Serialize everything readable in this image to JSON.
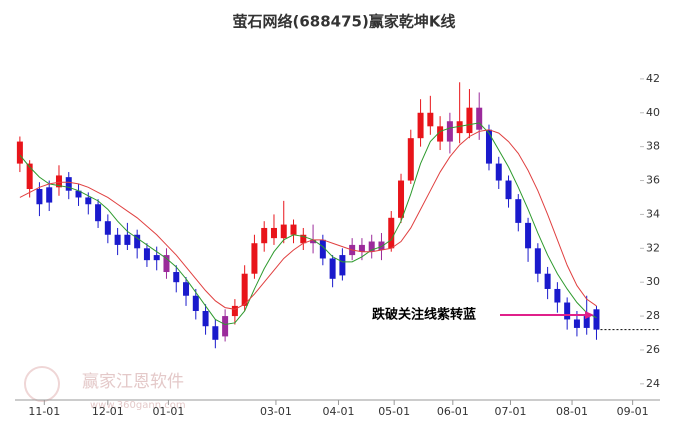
{
  "chart_data": {
    "type": "candlestick",
    "title": "萤石网络(688475)赢家乾坤K线",
    "annotation": "跌破关注线紫转蓝",
    "watermark": "赢家江恩软件",
    "watermark_url": "www.360gann.com",
    "xlim": [
      0,
      66
    ],
    "xticks": [
      {
        "value": 3,
        "label": "11-01"
      },
      {
        "value": 9.5,
        "label": "12-01"
      },
      {
        "value": 15.7,
        "label": "01-01"
      },
      {
        "value": 26.7,
        "label": "03-01"
      },
      {
        "value": 33.1,
        "label": "04-01"
      },
      {
        "value": 38.8,
        "label": "05-01"
      },
      {
        "value": 44.8,
        "label": "06-01"
      },
      {
        "value": 50.7,
        "label": "07-01"
      },
      {
        "value": 57,
        "label": "08-01"
      },
      {
        "value": 63.2,
        "label": "09-01"
      }
    ],
    "ylim": [
      23.4,
      44
    ],
    "yticks": [
      24,
      26,
      28,
      30,
      32,
      34,
      36,
      38,
      40,
      42
    ],
    "open": [
      38.3,
      37.0,
      35.5,
      34.7,
      35.6,
      36.2,
      35.4,
      35.0,
      34.6,
      33.6,
      32.8,
      32.2,
      32.8,
      32.0,
      31.3,
      31.6,
      30.6,
      30.0,
      29.2,
      28.3,
      27.4,
      26.8,
      28.0,
      28.6,
      30.5,
      32.3,
      33.2,
      32.6,
      33.4,
      32.8,
      32.3,
      32.5,
      31.4,
      30.4,
      31.6,
      32.2,
      31.8,
      32.4,
      32.0,
      33.8,
      36.0,
      38.5,
      40.0,
      39.2,
      38.3,
      39.5,
      38.8,
      40.3,
      39.0,
      37.0,
      36.0,
      34.9,
      33.5,
      32.0,
      30.5,
      29.6,
      28.8,
      27.8,
      27.3,
      28.4
    ],
    "high": [
      38.6,
      37.2,
      35.9,
      36.0,
      36.9,
      36.5,
      35.8,
      35.3,
      34.9,
      34.0,
      33.2,
      33.5,
      33.1,
      32.3,
      32.1,
      32.0,
      31.0,
      30.3,
      29.6,
      28.7,
      27.8,
      28.4,
      29.0,
      31.0,
      32.8,
      33.6,
      34.0,
      34.8,
      33.7,
      33.2,
      33.4,
      32.8,
      31.6,
      32.0,
      32.6,
      32.6,
      32.8,
      32.9,
      34.2,
      36.4,
      39.0,
      40.8,
      41.0,
      39.8,
      40.0,
      41.8,
      41.4,
      41.2,
      39.3,
      37.4,
      36.3,
      35.2,
      33.8,
      32.3,
      30.9,
      30.0,
      29.1,
      28.3,
      29.2,
      28.6
    ],
    "low": [
      36.5,
      35.0,
      33.9,
      34.2,
      35.1,
      34.9,
      34.5,
      34.0,
      33.2,
      32.3,
      31.6,
      31.9,
      31.4,
      30.9,
      30.7,
      30.2,
      29.4,
      28.6,
      27.8,
      26.9,
      26.1,
      26.5,
      27.5,
      28.3,
      30.2,
      31.8,
      32.2,
      32.3,
      32.3,
      31.9,
      31.7,
      31.0,
      29.7,
      30.1,
      31.3,
      31.3,
      31.4,
      31.3,
      31.8,
      33.5,
      35.8,
      38.0,
      38.7,
      37.8,
      37.6,
      38.2,
      38.5,
      38.4,
      36.6,
      35.5,
      34.4,
      33.0,
      31.2,
      30.0,
      29.0,
      28.2,
      27.2,
      26.8,
      26.9,
      26.6
    ],
    "close": [
      37.0,
      35.5,
      34.6,
      35.6,
      36.3,
      35.4,
      35.0,
      34.6,
      33.6,
      32.8,
      32.2,
      32.8,
      32.0,
      31.3,
      31.6,
      30.6,
      30.0,
      29.2,
      28.3,
      27.4,
      26.6,
      28.0,
      28.6,
      30.5,
      32.3,
      33.2,
      32.6,
      33.4,
      32.8,
      32.3,
      32.5,
      31.4,
      30.2,
      31.6,
      32.2,
      31.8,
      32.4,
      31.9,
      33.8,
      36.0,
      38.5,
      40.0,
      39.2,
      38.3,
      39.5,
      38.8,
      40.3,
      39.0,
      37.0,
      36.0,
      34.9,
      33.5,
      32.0,
      30.5,
      29.6,
      28.8,
      27.8,
      27.3,
      28.0,
      27.2
    ],
    "candle_colors": [
      "#e8141a",
      "#e8141a",
      "#1a1acc",
      "#1a1acc",
      "#e8141a",
      "#1a1acc",
      "#1a1acc",
      "#1a1acc",
      "#1a1acc",
      "#1a1acc",
      "#1a1acc",
      "#1a1acc",
      "#1a1acc",
      "#1a1acc",
      "#1a1acc",
      "#9b2a9b",
      "#1a1acc",
      "#1a1acc",
      "#1a1acc",
      "#1a1acc",
      "#1a1acc",
      "#9b2a9b",
      "#e8141a",
      "#e8141a",
      "#e8141a",
      "#e8141a",
      "#e8141a",
      "#e8141a",
      "#e8141a",
      "#e8141a",
      "#9b2a9b",
      "#1a1acc",
      "#1a1acc",
      "#1a1acc",
      "#9b2a9b",
      "#9b2a9b",
      "#9b2a9b",
      "#9b2a9b",
      "#e8141a",
      "#e8141a",
      "#e8141a",
      "#e8141a",
      "#e8141a",
      "#e8141a",
      "#9b2a9b",
      "#e8141a",
      "#e8141a",
      "#9b2a9b",
      "#1a1acc",
      "#1a1acc",
      "#1a1acc",
      "#1a1acc",
      "#1a1acc",
      "#1a1acc",
      "#1a1acc",
      "#1a1acc",
      "#1a1acc",
      "#1a1acc",
      "#1a1acc",
      "#1a1acc"
    ],
    "series": [
      {
        "color": "#2e9a2e",
        "values": [
          37.5,
          36.8,
          36.2,
          35.8,
          35.7,
          35.6,
          35.4,
          35.1,
          34.8,
          34.3,
          33.6,
          33.0,
          32.6,
          32.2,
          31.8,
          31.4,
          30.9,
          30.2,
          29.4,
          28.6,
          27.8,
          27.5,
          27.6,
          28.3,
          29.6,
          30.8,
          31.8,
          32.5,
          32.8,
          32.7,
          32.5,
          32.1,
          31.5,
          31.2,
          31.2,
          31.5,
          31.9,
          32.1,
          32.5,
          33.6,
          35.2,
          37.0,
          38.3,
          38.9,
          39.1,
          39.2,
          39.3,
          39.4,
          38.8,
          37.8,
          36.8,
          35.6,
          34.3,
          32.9,
          31.6,
          30.5,
          29.6,
          28.8,
          28.2,
          27.9
        ]
      },
      {
        "color": "#e04040",
        "values": [
          35.0,
          35.3,
          35.6,
          35.8,
          35.9,
          35.9,
          35.8,
          35.6,
          35.3,
          35.0,
          34.6,
          34.2,
          33.8,
          33.3,
          32.8,
          32.2,
          31.6,
          30.9,
          30.2,
          29.5,
          28.9,
          28.5,
          28.4,
          28.7,
          29.3,
          30.0,
          30.7,
          31.4,
          31.9,
          32.3,
          32.5,
          32.5,
          32.3,
          32.1,
          31.9,
          31.8,
          31.8,
          31.9,
          32.0,
          32.4,
          33.2,
          34.3,
          35.4,
          36.5,
          37.4,
          38.1,
          38.6,
          38.9,
          39.0,
          38.8,
          38.3,
          37.6,
          36.6,
          35.4,
          34.0,
          32.5,
          31.0,
          29.8,
          29.0,
          28.6
        ]
      }
    ],
    "annotation_color": "#e0208a"
  }
}
